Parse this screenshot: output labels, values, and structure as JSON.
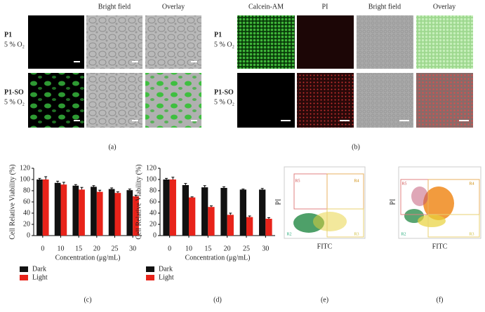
{
  "panels": {
    "a": {
      "label": "(a)",
      "headers": [
        "Bright field",
        "Overlay"
      ],
      "rows": [
        {
          "name": "P1",
          "condition": "5 % O₂"
        },
        {
          "name": "P1-SO",
          "condition": "5 % O₂"
        }
      ]
    },
    "b": {
      "label": "(b)",
      "headers": [
        "Calcein-AM",
        "PI",
        "Bright field",
        "Overlay"
      ],
      "rows": [
        {
          "name": "P1",
          "condition": "5 % O₂"
        },
        {
          "name": "P1-SO",
          "condition": "5 % O₂"
        }
      ]
    },
    "e": {
      "label": "(e)",
      "ylabel": "PI",
      "xlabel": "FITC",
      "regions": [
        "R5",
        "R4",
        "R2",
        "R3"
      ]
    },
    "f": {
      "label": "(f)",
      "ylabel": "PI",
      "xlabel": "FITC",
      "regions": [
        "R5",
        "R4",
        "R2",
        "R3"
      ]
    }
  },
  "chart_data": [
    {
      "type": "bar",
      "label": "(c)",
      "ylabel": "Cell Relative Viability (%)",
      "xlabel": "Concentration (μg/mL)",
      "categories": [
        "0",
        "10",
        "15",
        "20",
        "25",
        "30"
      ],
      "ylim": [
        0,
        120
      ],
      "yticks": [
        0,
        20,
        40,
        60,
        80,
        100,
        120
      ],
      "series": [
        {
          "name": "Dark",
          "color": "#111111",
          "values": [
            100,
            94,
            89,
            87,
            83,
            81
          ],
          "errors": [
            2,
            3,
            2,
            2,
            2,
            2
          ]
        },
        {
          "name": "Light",
          "color": "#e8231a",
          "values": [
            100,
            91,
            82,
            78,
            76,
            70
          ],
          "errors": [
            5,
            4,
            4,
            3,
            2,
            2
          ]
        }
      ]
    },
    {
      "type": "bar",
      "label": "(d)",
      "ylabel": "Cell Relative Viability (%)",
      "xlabel": "Concentration (μg/mL)",
      "categories": [
        "0",
        "10",
        "15",
        "20",
        "25",
        "30"
      ],
      "ylim": [
        0,
        120
      ],
      "yticks": [
        0,
        20,
        40,
        60,
        80,
        100,
        120
      ],
      "series": [
        {
          "name": "Dark",
          "color": "#111111",
          "values": [
            100,
            90,
            86,
            85,
            82,
            82
          ],
          "errors": [
            2,
            3,
            3,
            2,
            1,
            2
          ]
        },
        {
          "name": "Light",
          "color": "#e8231a",
          "values": [
            100,
            68,
            51,
            37,
            33,
            30
          ],
          "errors": [
            4,
            1,
            2,
            3,
            2,
            2
          ]
        }
      ]
    }
  ]
}
